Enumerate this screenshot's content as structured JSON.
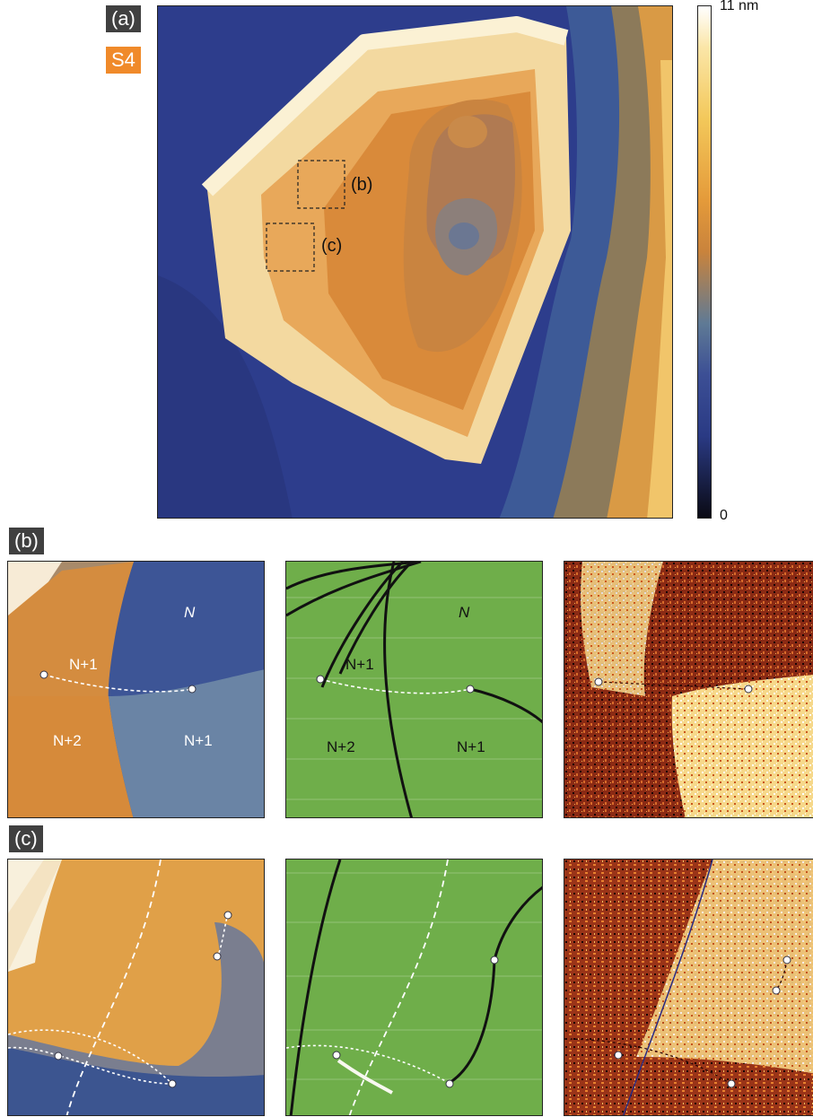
{
  "panel_a": {
    "tag": "(a)",
    "sample": "S4",
    "box_b_label": "(b)",
    "box_c_label": "(c)"
  },
  "colorbar": {
    "max_label": "11 nm",
    "min_label": "0"
  },
  "panel_b": {
    "tag": "(b)",
    "labels": {
      "n": "N",
      "n1_top": "N+1",
      "n2": "N+2",
      "n1_bottom": "N+1"
    }
  },
  "panel_c": {
    "tag": "(c)"
  },
  "colors": {
    "tag_dark": "#404040",
    "tag_sample": "#f08a2a",
    "substrate_blue": "#2e3f8f",
    "flake_orange": "#d98a3a",
    "flake_rim": "#f3d49a",
    "phase_green": "#6fae4a",
    "thermal_dark": "#7a1e10",
    "thermal_bright": "#fff3c0"
  }
}
